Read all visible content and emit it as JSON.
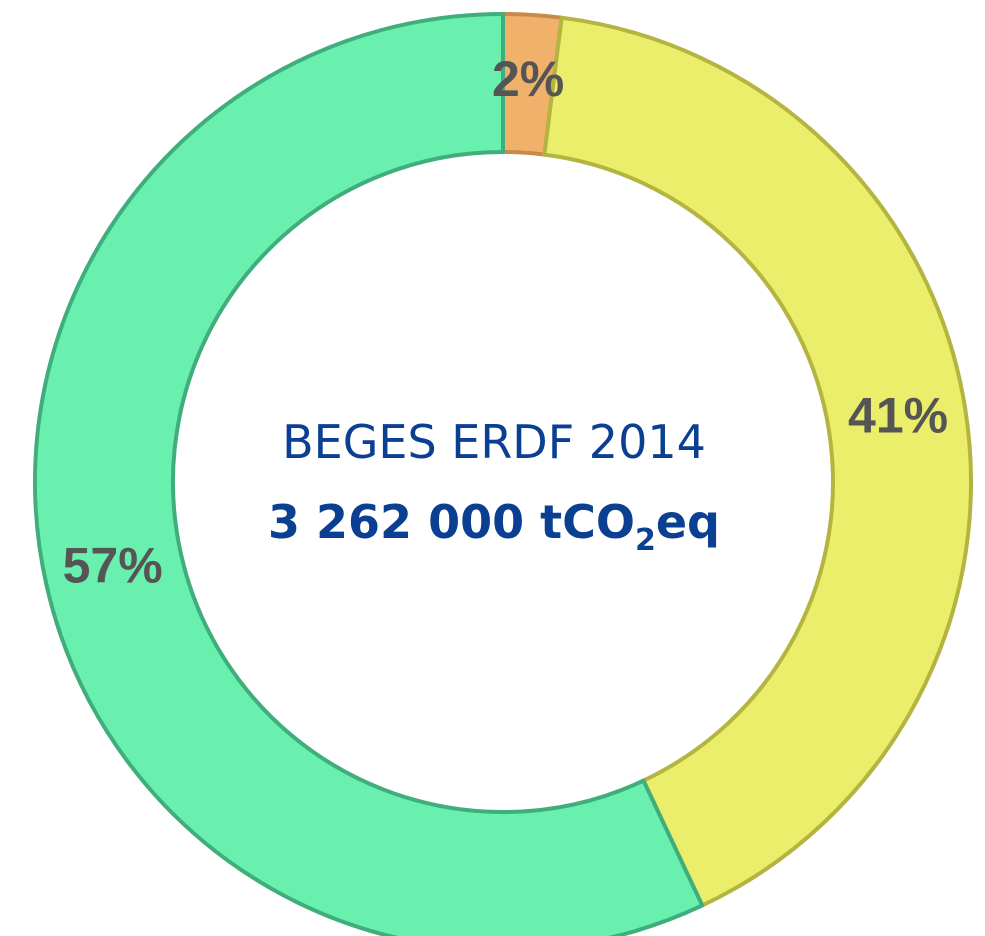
{
  "chart_data": {
    "type": "donut",
    "values": [
      2,
      41,
      57
    ],
    "value_labels": [
      "2%",
      "41%",
      "57%"
    ],
    "colors": [
      "#f0b26a",
      "#eaee6a",
      "#6af0ae"
    ],
    "stroke_colors": [
      "#c88a4a",
      "#b4b440",
      "#3fae7c"
    ],
    "center_title": "BEGES ERDF 2014",
    "center_total": {
      "text": "3 262 000 tCO",
      "subscript": "2",
      "suffix": "eq"
    }
  }
}
